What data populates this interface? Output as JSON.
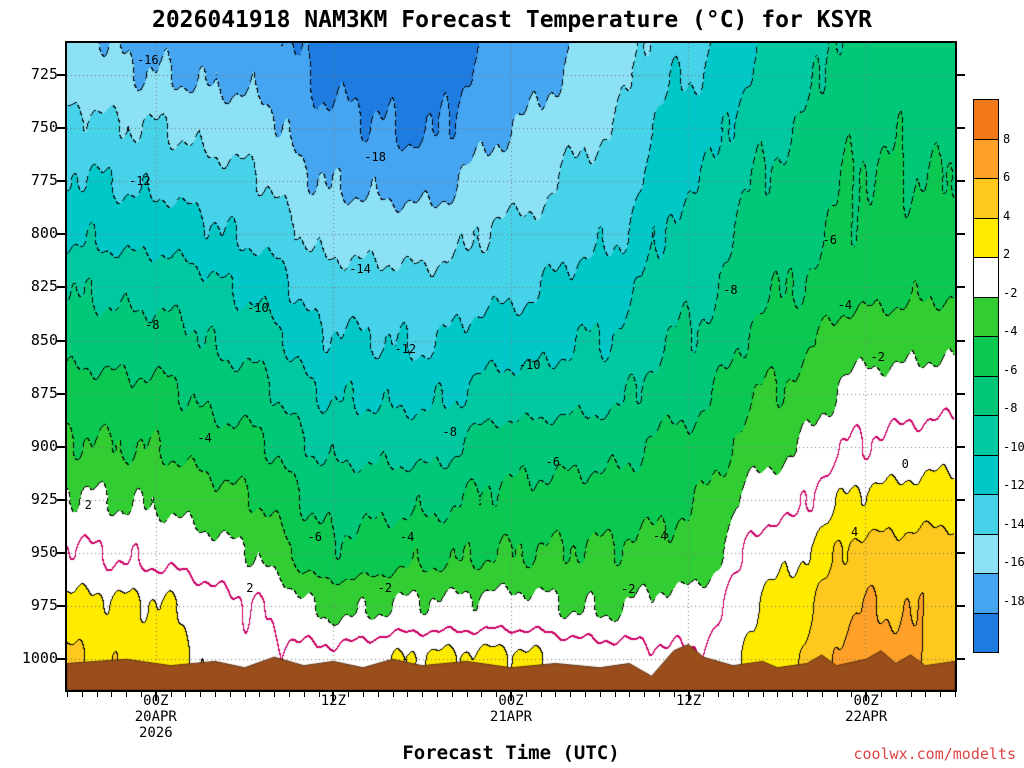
{
  "title": "2026041918 NAM3KM Forecast Temperature (°C) for KSYR",
  "x_axis_label": "Forecast Time (UTC)",
  "watermark": "coolwx.com/modelts",
  "colors": {
    "watermark": "#DD4444",
    "axis": "#000000"
  },
  "chart_data": {
    "type": "heatmap",
    "title": "2026041918 NAM3KM Forecast Temperature (°C) for KSYR",
    "xlabel": "Forecast Time (UTC)",
    "ylabel_ticks_unit": "hPa",
    "xlim_hours": [
      0,
      60
    ],
    "ylim": [
      1014,
      710
    ],
    "grid": true,
    "legend_position": "right-colorbar",
    "time_hours": [
      0,
      6,
      12,
      18,
      24,
      30,
      36,
      42,
      48,
      54,
      60
    ],
    "x_ticks": [
      {
        "hour": 6,
        "label": "00Z",
        "date": "20APR",
        "year": "2026"
      },
      {
        "hour": 18,
        "label": "12Z"
      },
      {
        "hour": 30,
        "label": "00Z",
        "date": "21APR"
      },
      {
        "hour": 42,
        "label": "12Z"
      },
      {
        "hour": 54,
        "label": "00Z",
        "date": "22APR"
      }
    ],
    "y_ticks": [
      725,
      750,
      775,
      800,
      825,
      850,
      875,
      900,
      925,
      950,
      975,
      1000
    ],
    "pressure_levels": [
      710,
      725,
      750,
      775,
      800,
      825,
      850,
      875,
      900,
      925,
      950,
      975,
      1000,
      1014
    ],
    "band_boundaries": [
      -18,
      -16,
      -14,
      -12,
      -10,
      -8,
      -6,
      -4,
      -2,
      2,
      4,
      6,
      8
    ],
    "band_colors": [
      "#1E7CE1",
      "#46A5F0",
      "#8CE1F5",
      "#46D2E8",
      "#00C8C8",
      "#00C8A0",
      "#00C878",
      "#0AC850",
      "#32CD32",
      "#FFFFFF",
      "#FFEB00",
      "#FFC81E",
      "#FFA028",
      "#F07818"
    ],
    "colorbar_labels": [
      8,
      6,
      4,
      2,
      -2,
      -4,
      -6,
      -8,
      -10,
      -12,
      -14,
      -16,
      -18
    ],
    "grid_temps": [
      [
        -15.5,
        -16.5,
        -16.8,
        -18.8,
        -19.3,
        -17.4,
        -15.5,
        -12.5,
        -9.5,
        -7.2,
        -7.5
      ],
      [
        -15.0,
        -16.0,
        -16.4,
        -18.4,
        -18.8,
        -17.0,
        -15.0,
        -12.0,
        -9.3,
        -6.8,
        -7.0
      ],
      [
        -13.5,
        -14.0,
        -15.0,
        -17.6,
        -18.3,
        -16.0,
        -14.2,
        -11.0,
        -8.3,
        -6.3,
        -6.5
      ],
      [
        -11.8,
        -12.4,
        -13.6,
        -16.2,
        -16.6,
        -15.0,
        -13.3,
        -10.2,
        -7.6,
        -5.8,
        -6.0
      ],
      [
        -10.2,
        -10.6,
        -12.2,
        -14.6,
        -15.0,
        -13.6,
        -12.4,
        -9.4,
        -6.9,
        -5.6,
        -5.2
      ],
      [
        -8.2,
        -8.6,
        -10.2,
        -13.2,
        -13.4,
        -12.4,
        -11.2,
        -8.6,
        -6.2,
        -4.6,
        -4.2
      ],
      [
        -6.8,
        -7.2,
        -8.6,
        -11.8,
        -12.2,
        -10.8,
        -10.0,
        -7.8,
        -5.0,
        -2.8,
        -2.4
      ],
      [
        -5.2,
        -5.6,
        -7.0,
        -10.2,
        -10.4,
        -9.2,
        -8.6,
        -6.6,
        -3.8,
        -1.2,
        -0.8
      ],
      [
        -3.8,
        -4.1,
        -5.4,
        -8.4,
        -8.6,
        -6.8,
        -6.6,
        -5.4,
        -2.4,
        0.2,
        1.2
      ],
      [
        -1.8,
        -2.2,
        -3.8,
        -6.6,
        -6.4,
        -5.6,
        -5.2,
        -4.2,
        -0.8,
        2.4,
        3.0
      ],
      [
        0.2,
        -0.4,
        -1.8,
        -5.7,
        -4.4,
        -4.0,
        -3.8,
        -3.4,
        1.4,
        4.6,
        5.0
      ],
      [
        2.4,
        2.2,
        0.2,
        -2.4,
        -1.8,
        -1.5,
        -2.2,
        -1.4,
        2.6,
        6.0,
        5.6
      ],
      [
        4.2,
        3.2,
        0.4,
        0.6,
        2.2,
        2.4,
        1.0,
        0.2,
        3.4,
        7.2,
        5.4
      ],
      [
        4.4,
        3.4,
        0.3,
        0.8,
        2.4,
        2.6,
        1.2,
        0.4,
        3.6,
        7.6,
        5.6
      ]
    ],
    "terrain_profile": [
      [
        0,
        1002
      ],
      [
        4,
        1000
      ],
      [
        7,
        1003
      ],
      [
        10,
        1001
      ],
      [
        12,
        1004
      ],
      [
        14,
        999
      ],
      [
        16,
        1003
      ],
      [
        18,
        1001
      ],
      [
        20,
        1004
      ],
      [
        22,
        1000
      ],
      [
        24,
        1003
      ],
      [
        27,
        1001
      ],
      [
        30,
        1004
      ],
      [
        33,
        1002
      ],
      [
        36,
        1004
      ],
      [
        38,
        1002
      ],
      [
        39.5,
        1008
      ],
      [
        41,
        996
      ],
      [
        42,
        993
      ],
      [
        43,
        999
      ],
      [
        45,
        1003
      ],
      [
        47,
        1001
      ],
      [
        48,
        1004
      ],
      [
        50,
        1002
      ],
      [
        51,
        998
      ],
      [
        52,
        1003
      ],
      [
        54,
        1000
      ],
      [
        55,
        996
      ],
      [
        56,
        1002
      ],
      [
        57,
        998
      ],
      [
        58,
        1003
      ],
      [
        60,
        1001
      ]
    ],
    "terrain_color": "#9A4E1C",
    "zero_line_color": "#CC0066",
    "grid_dot_color": "#787878",
    "contour_labels": [
      {
        "text": "-16",
        "x": 9.1,
        "y": 2.6
      },
      {
        "text": "-18",
        "x": 34.7,
        "y": 17.6
      },
      {
        "text": "-12",
        "x": 8.2,
        "y": 21.3
      },
      {
        "text": "-14",
        "x": 33.0,
        "y": 34.9
      },
      {
        "text": "-10",
        "x": 21.5,
        "y": 41.0
      },
      {
        "text": "-8",
        "x": 9.6,
        "y": 43.6
      },
      {
        "text": "-12",
        "x": 38.1,
        "y": 47.3
      },
      {
        "text": "-10",
        "x": 52.1,
        "y": 49.8
      },
      {
        "text": "-8",
        "x": 43.1,
        "y": 60.1
      },
      {
        "text": "-6",
        "x": 54.7,
        "y": 64.8
      },
      {
        "text": "-4",
        "x": 15.5,
        "y": 61.1
      },
      {
        "text": "-6",
        "x": 27.9,
        "y": 76.4
      },
      {
        "text": "-4",
        "x": 38.3,
        "y": 76.4
      },
      {
        "text": "-2",
        "x": 35.8,
        "y": 84.2
      },
      {
        "text": "-4",
        "x": 66.8,
        "y": 76.2
      },
      {
        "text": "-2",
        "x": 63.2,
        "y": 84.4
      },
      {
        "text": "-8",
        "x": 74.7,
        "y": 38.2
      },
      {
        "text": "-6",
        "x": 85.9,
        "y": 30.4
      },
      {
        "text": "-4",
        "x": 87.6,
        "y": 40.5
      },
      {
        "text": "-2",
        "x": 91.3,
        "y": 48.5
      },
      {
        "text": "0",
        "x": 94.4,
        "y": 65.1
      },
      {
        "text": "4",
        "x": 88.7,
        "y": 75.6
      },
      {
        "text": "2",
        "x": 20.6,
        "y": 84.2
      },
      {
        "text": "2",
        "x": 2.4,
        "y": 71.4
      }
    ]
  }
}
